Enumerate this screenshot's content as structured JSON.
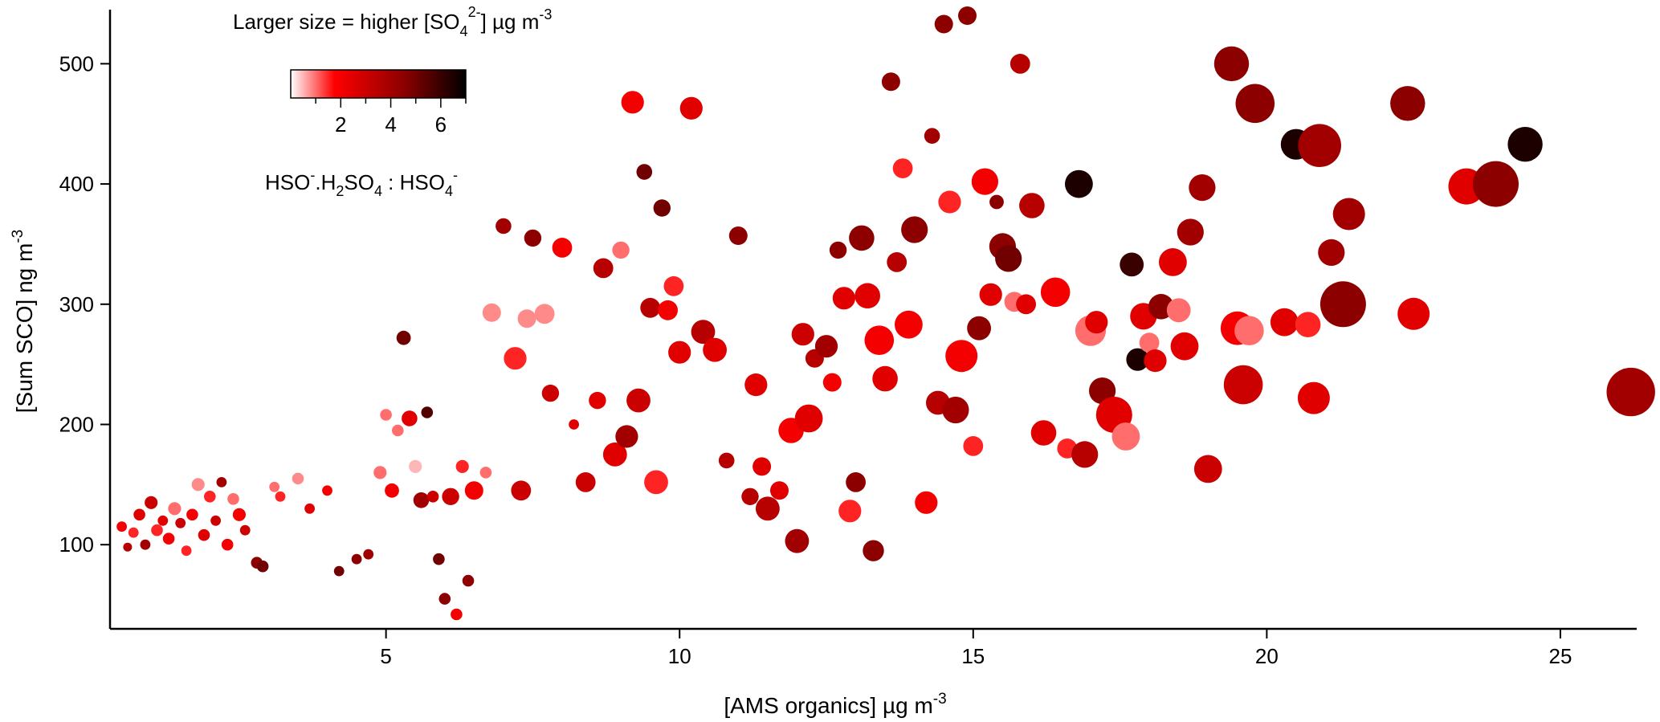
{
  "chart_data": {
    "type": "scatter",
    "xlabel": "[AMS organics]  µg m",
    "xlabel_sup": "-3",
    "ylabel": "[Sum SCO]  ng m",
    "ylabel_sup": "-3",
    "xlim": [
      0.3,
      26.3
    ],
    "ylim": [
      30,
      545
    ],
    "x_ticks": [
      5,
      10,
      15,
      20,
      25
    ],
    "y_ticks": [
      100,
      200,
      300,
      400,
      500
    ],
    "size_legend": {
      "text": "Larger size = higher [SO",
      "sub": "4",
      "sup": "2-",
      "tail": "]  µg m",
      "tail_sup": "-3"
    },
    "colorbar": {
      "title": "HSO4-.H2SO4 : HSO4-",
      "range": [
        0,
        7
      ],
      "ticks": [
        2,
        4,
        6
      ],
      "colors": [
        "#ffffff",
        "#ff0000",
        "#8b0000",
        "#000000"
      ]
    },
    "points": [
      [
        0.5,
        115,
        2.0,
        0.4
      ],
      [
        0.6,
        98,
        3.5,
        0.3
      ],
      [
        0.7,
        110,
        1.5,
        0.4
      ],
      [
        0.8,
        125,
        2.5,
        0.5
      ],
      [
        0.9,
        100,
        4.0,
        0.4
      ],
      [
        1.0,
        135,
        3.0,
        0.6
      ],
      [
        1.1,
        112,
        1.5,
        0.5
      ],
      [
        1.2,
        120,
        2.5,
        0.4
      ],
      [
        1.3,
        105,
        2.0,
        0.5
      ],
      [
        1.4,
        130,
        1.0,
        0.6
      ],
      [
        1.5,
        118,
        3.0,
        0.4
      ],
      [
        1.6,
        95,
        1.5,
        0.4
      ],
      [
        1.7,
        125,
        2.0,
        0.5
      ],
      [
        1.8,
        150,
        0.8,
        0.6
      ],
      [
        1.9,
        108,
        2.5,
        0.5
      ],
      [
        2.0,
        140,
        1.5,
        0.5
      ],
      [
        2.1,
        120,
        3.0,
        0.4
      ],
      [
        2.2,
        152,
        4.0,
        0.4
      ],
      [
        2.3,
        100,
        2.0,
        0.5
      ],
      [
        2.4,
        138,
        1.0,
        0.5
      ],
      [
        2.5,
        125,
        2.0,
        0.6
      ],
      [
        2.6,
        112,
        3.0,
        0.4
      ],
      [
        2.8,
        85,
        4.5,
        0.5
      ],
      [
        2.9,
        82,
        5.0,
        0.5
      ],
      [
        3.1,
        148,
        1.0,
        0.4
      ],
      [
        3.2,
        140,
        1.5,
        0.4
      ],
      [
        3.5,
        155,
        0.8,
        0.5
      ],
      [
        3.7,
        130,
        2.5,
        0.4
      ],
      [
        4.0,
        145,
        2.0,
        0.4
      ],
      [
        4.2,
        78,
        5.0,
        0.4
      ],
      [
        4.5,
        88,
        4.5,
        0.4
      ],
      [
        4.7,
        92,
        4.0,
        0.4
      ],
      [
        4.9,
        160,
        1.0,
        0.6
      ],
      [
        5.0,
        208,
        1.0,
        0.5
      ],
      [
        5.1,
        145,
        2.0,
        0.7
      ],
      [
        5.2,
        195,
        1.0,
        0.5
      ],
      [
        5.3,
        272,
        5.0,
        0.7
      ],
      [
        5.4,
        205,
        2.5,
        0.8
      ],
      [
        5.5,
        165,
        0.5,
        0.6
      ],
      [
        5.6,
        137,
        4.0,
        0.8
      ],
      [
        5.7,
        210,
        5.5,
        0.5
      ],
      [
        5.8,
        140,
        3.0,
        0.5
      ],
      [
        5.9,
        88,
        5.0,
        0.5
      ],
      [
        6.0,
        55,
        4.5,
        0.5
      ],
      [
        6.1,
        140,
        3.0,
        0.9
      ],
      [
        6.2,
        42,
        2.0,
        0.5
      ],
      [
        6.3,
        165,
        1.5,
        0.6
      ],
      [
        6.4,
        70,
        4.5,
        0.5
      ],
      [
        6.5,
        145,
        2.0,
        1.0
      ],
      [
        6.7,
        160,
        1.0,
        0.5
      ],
      [
        6.8,
        293,
        0.8,
        1.0
      ],
      [
        7.0,
        365,
        4.0,
        0.8
      ],
      [
        7.2,
        255,
        1.5,
        1.3
      ],
      [
        7.3,
        145,
        3.0,
        1.1
      ],
      [
        7.4,
        288,
        0.8,
        1.0
      ],
      [
        7.5,
        355,
        4.5,
        0.9
      ],
      [
        7.7,
        292,
        0.8,
        1.1
      ],
      [
        7.8,
        226,
        3.0,
        0.9
      ],
      [
        8.0,
        347,
        2.0,
        1.1
      ],
      [
        8.2,
        200,
        2.5,
        0.4
      ],
      [
        8.4,
        152,
        3.0,
        1.1
      ],
      [
        8.6,
        220,
        2.5,
        0.9
      ],
      [
        8.7,
        330,
        3.5,
        1.1
      ],
      [
        8.9,
        175,
        2.5,
        1.4
      ],
      [
        9.0,
        345,
        1.0,
        0.9
      ],
      [
        9.1,
        190,
        4.0,
        1.3
      ],
      [
        9.2,
        468,
        2.0,
        1.3
      ],
      [
        9.3,
        220,
        3.0,
        1.4
      ],
      [
        9.4,
        410,
        5.0,
        0.8
      ],
      [
        9.5,
        297,
        3.5,
        1.1
      ],
      [
        9.6,
        152,
        1.5,
        1.4
      ],
      [
        9.7,
        380,
        5.0,
        0.9
      ],
      [
        9.8,
        295,
        2.0,
        1.1
      ],
      [
        9.9,
        315,
        1.5,
        1.1
      ],
      [
        10.0,
        260,
        2.5,
        1.3
      ],
      [
        10.2,
        463,
        2.5,
        1.3
      ],
      [
        10.4,
        277,
        3.5,
        1.4
      ],
      [
        10.6,
        262,
        2.5,
        1.4
      ],
      [
        10.8,
        170,
        3.5,
        0.8
      ],
      [
        11.0,
        357,
        4.5,
        1.0
      ],
      [
        11.2,
        140,
        3.5,
        0.9
      ],
      [
        11.3,
        233,
        2.5,
        1.3
      ],
      [
        11.4,
        165,
        2.5,
        1.0
      ],
      [
        11.5,
        130,
        3.5,
        1.4
      ],
      [
        11.7,
        145,
        2.5,
        1.0
      ],
      [
        11.9,
        195,
        2.0,
        1.5
      ],
      [
        12.0,
        103,
        4.0,
        1.4
      ],
      [
        12.1,
        275,
        3.0,
        1.3
      ],
      [
        12.2,
        205,
        2.5,
        1.7
      ],
      [
        12.3,
        255,
        3.5,
        1.0
      ],
      [
        12.5,
        265,
        4.0,
        1.3
      ],
      [
        12.6,
        235,
        2.0,
        1.0
      ],
      [
        12.7,
        345,
        4.5,
        0.9
      ],
      [
        12.8,
        305,
        2.5,
        1.3
      ],
      [
        12.9,
        128,
        1.5,
        1.3
      ],
      [
        13.0,
        152,
        4.5,
        1.1
      ],
      [
        13.1,
        355,
        4.5,
        1.5
      ],
      [
        13.2,
        307,
        2.5,
        1.5
      ],
      [
        13.3,
        95,
        4.5,
        1.2
      ],
      [
        13.4,
        270,
        2.0,
        1.8
      ],
      [
        13.5,
        238,
        2.5,
        1.5
      ],
      [
        13.6,
        485,
        4.5,
        1.0
      ],
      [
        13.7,
        335,
        3.5,
        1.1
      ],
      [
        13.8,
        413,
        1.5,
        1.1
      ],
      [
        13.9,
        283,
        2.0,
        1.7
      ],
      [
        14.0,
        362,
        4.5,
        1.6
      ],
      [
        14.2,
        135,
        2.0,
        1.3
      ],
      [
        14.3,
        440,
        4.0,
        0.8
      ],
      [
        14.4,
        218,
        3.5,
        1.4
      ],
      [
        14.5,
        533,
        4.5,
        1.0
      ],
      [
        14.6,
        385,
        1.5,
        1.3
      ],
      [
        14.7,
        212,
        4.0,
        1.6
      ],
      [
        14.8,
        257,
        2.0,
        2.0
      ],
      [
        14.9,
        540,
        4.5,
        1.0
      ],
      [
        15.0,
        182,
        1.5,
        1.1
      ],
      [
        15.1,
        280,
        4.5,
        1.4
      ],
      [
        15.2,
        402,
        2.0,
        1.6
      ],
      [
        15.3,
        308,
        2.5,
        1.3
      ],
      [
        15.4,
        385,
        4.5,
        0.7
      ],
      [
        15.5,
        348,
        4.5,
        1.6
      ],
      [
        15.6,
        338,
        5.0,
        1.6
      ],
      [
        15.7,
        302,
        1.0,
        1.1
      ],
      [
        15.8,
        500,
        3.5,
        1.1
      ],
      [
        15.9,
        300,
        2.5,
        1.1
      ],
      [
        16.0,
        382,
        3.5,
        1.5
      ],
      [
        16.2,
        193,
        2.5,
        1.5
      ],
      [
        16.4,
        310,
        2.0,
        1.8
      ],
      [
        16.6,
        180,
        1.5,
        1.1
      ],
      [
        16.8,
        400,
        6.5,
        1.7
      ],
      [
        16.9,
        175,
        3.5,
        1.6
      ],
      [
        17.0,
        278,
        1.0,
        1.9
      ],
      [
        17.1,
        285,
        2.5,
        1.3
      ],
      [
        17.2,
        228,
        4.5,
        1.6
      ],
      [
        17.4,
        208,
        2.5,
        2.3
      ],
      [
        17.6,
        190,
        1.0,
        1.7
      ],
      [
        17.7,
        333,
        6.0,
        1.4
      ],
      [
        17.8,
        254,
        6.5,
        1.3
      ],
      [
        17.9,
        290,
        2.5,
        1.6
      ],
      [
        18.0,
        268,
        1.0,
        1.1
      ],
      [
        18.1,
        253,
        2.5,
        1.3
      ],
      [
        18.2,
        298,
        4.5,
        1.5
      ],
      [
        18.4,
        335,
        2.5,
        1.7
      ],
      [
        18.5,
        295,
        1.0,
        1.4
      ],
      [
        18.6,
        265,
        2.5,
        1.7
      ],
      [
        18.7,
        360,
        4.0,
        1.6
      ],
      [
        18.9,
        397,
        4.0,
        1.6
      ],
      [
        19.0,
        163,
        3.0,
        1.7
      ],
      [
        19.4,
        500,
        4.5,
        2.2
      ],
      [
        19.5,
        280,
        2.0,
        2.1
      ],
      [
        19.6,
        233,
        3.0,
        2.5
      ],
      [
        19.7,
        278,
        1.0,
        1.8
      ],
      [
        19.8,
        467,
        4.5,
        2.5
      ],
      [
        20.3,
        285,
        2.5,
        1.7
      ],
      [
        20.5,
        433,
        6.5,
        1.9
      ],
      [
        20.7,
        283,
        1.5,
        1.5
      ],
      [
        20.8,
        222,
        2.5,
        2.0
      ],
      [
        20.9,
        432,
        4.0,
        2.8
      ],
      [
        21.1,
        343,
        4.0,
        1.6
      ],
      [
        21.3,
        300,
        4.5,
        3.0
      ],
      [
        21.4,
        375,
        4.0,
        2.0
      ],
      [
        22.4,
        467,
        4.5,
        2.2
      ],
      [
        22.5,
        292,
        2.5,
        2.0
      ],
      [
        23.4,
        398,
        2.5,
        2.3
      ],
      [
        23.9,
        400,
        4.5,
        3.0
      ],
      [
        24.4,
        433,
        6.5,
        2.2
      ],
      [
        26.2,
        227,
        4.0,
        3.2
      ]
    ]
  }
}
